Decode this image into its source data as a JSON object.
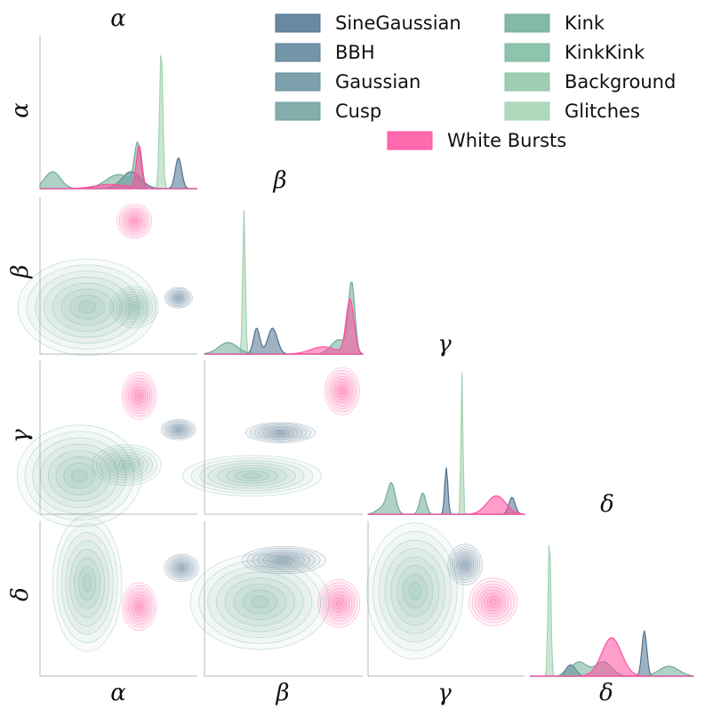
{
  "chart_data": {
    "type": "pairplot",
    "variables": [
      "α",
      "β",
      "γ",
      "δ"
    ],
    "diagonal_titles": [
      "α",
      "β",
      "γ",
      "δ"
    ],
    "row_labels": [
      "α",
      "β",
      "γ",
      "δ"
    ],
    "col_labels": [
      "α",
      "β",
      "γ",
      "δ"
    ],
    "legend_placement": "top-right",
    "legend": [
      {
        "name": "SineGaussian",
        "color": "#4f7390"
      },
      {
        "name": "BBH",
        "color": "#5a8299"
      },
      {
        "name": "Gaussian",
        "color": "#65919f"
      },
      {
        "name": "Cusp",
        "color": "#6e9f9c"
      },
      {
        "name": "Kink",
        "color": "#6fac98"
      },
      {
        "name": "KinkKink",
        "color": "#7ab99e"
      },
      {
        "name": "Background",
        "color": "#8dc5a4"
      },
      {
        "name": "Glitches",
        "color": "#a2d2b0"
      },
      {
        "name": "White Bursts",
        "color": "#ff4fa0"
      }
    ],
    "diagonal_kde": [
      {
        "variable": "α",
        "series": [
          {
            "name": "Glitches",
            "peaks": [
              [
                0.77,
                1.0,
                0.01
              ]
            ]
          },
          {
            "name": "SineGaussian",
            "peaks": [
              [
                0.88,
                0.22,
                0.02
              ],
              [
                0.58,
                0.12,
                0.06
              ]
            ]
          },
          {
            "name": "Kink",
            "peaks": [
              [
                0.08,
                0.12,
                0.05
              ],
              [
                0.5,
                0.1,
                0.08
              ],
              [
                0.62,
                0.3,
                0.02
              ]
            ]
          },
          {
            "name": "White Bursts",
            "peaks": [
              [
                0.63,
                0.3,
                0.018
              ],
              [
                0.45,
                0.03,
                0.1
              ]
            ]
          }
        ]
      },
      {
        "variable": "β",
        "series": [
          {
            "name": "Glitches",
            "peaks": [
              [
                0.25,
                1.0,
                0.008
              ]
            ]
          },
          {
            "name": "SineGaussian",
            "peaks": [
              [
                0.33,
                0.18,
                0.02
              ],
              [
                0.43,
                0.18,
                0.03
              ]
            ]
          },
          {
            "name": "Kink",
            "peaks": [
              [
                0.15,
                0.08,
                0.06
              ],
              [
                0.93,
                0.48,
                0.02
              ],
              [
                0.85,
                0.1,
                0.05
              ]
            ]
          },
          {
            "name": "White Bursts",
            "peaks": [
              [
                0.92,
                0.38,
                0.025
              ],
              [
                0.75,
                0.05,
                0.08
              ]
            ]
          }
        ]
      },
      {
        "variable": "γ",
        "series": [
          {
            "name": "Glitches",
            "peaks": [
              [
                0.6,
                1.0,
                0.006
              ]
            ]
          },
          {
            "name": "SineGaussian",
            "peaks": [
              [
                0.5,
                0.33,
                0.01
              ],
              [
                0.92,
                0.12,
                0.02
              ]
            ]
          },
          {
            "name": "Kink",
            "peaks": [
              [
                0.15,
                0.2,
                0.025
              ],
              [
                0.35,
                0.15,
                0.02
              ],
              [
                0.1,
                0.05,
                0.04
              ]
            ]
          },
          {
            "name": "White Bursts",
            "peaks": [
              [
                0.82,
                0.13,
                0.06
              ]
            ]
          }
        ]
      },
      {
        "variable": "δ",
        "series": [
          {
            "name": "Glitches",
            "peaks": [
              [
                0.12,
                1.0,
                0.008
              ]
            ]
          },
          {
            "name": "SineGaussian",
            "peaks": [
              [
                0.7,
                0.32,
                0.015
              ],
              [
                0.25,
                0.08,
                0.03
              ]
            ]
          },
          {
            "name": "Kink",
            "peaks": [
              [
                0.3,
                0.1,
                0.05
              ],
              [
                0.45,
                0.1,
                0.05
              ],
              [
                0.85,
                0.07,
                0.06
              ]
            ]
          },
          {
            "name": "White Bursts",
            "peaks": [
              [
                0.5,
                0.27,
                0.06
              ]
            ]
          }
        ]
      }
    ],
    "contour_blobs": {
      "β-α": [
        {
          "name": "White Bursts",
          "cx": 0.6,
          "cy": 0.85,
          "sx": 0.05,
          "sy": 0.05
        },
        {
          "name": "SineGaussian",
          "cx": 0.88,
          "cy": 0.36,
          "sx": 0.04,
          "sy": 0.03
        },
        {
          "name": "Kink",
          "cx": 0.3,
          "cy": 0.3,
          "sx": 0.2,
          "sy": 0.14
        },
        {
          "name": "Kink",
          "cx": 0.6,
          "cy": 0.3,
          "sx": 0.07,
          "sy": 0.06
        }
      ],
      "γ-α": [
        {
          "name": "White Bursts",
          "cx": 0.63,
          "cy": 0.77,
          "sx": 0.05,
          "sy": 0.07
        },
        {
          "name": "SineGaussian",
          "cx": 0.88,
          "cy": 0.55,
          "sx": 0.05,
          "sy": 0.03
        },
        {
          "name": "Kink",
          "cx": 0.25,
          "cy": 0.25,
          "sx": 0.18,
          "sy": 0.15
        },
        {
          "name": "Kink",
          "cx": 0.55,
          "cy": 0.32,
          "sx": 0.1,
          "sy": 0.06
        }
      ],
      "γ-β": [
        {
          "name": "White Bursts",
          "cx": 0.87,
          "cy": 0.8,
          "sx": 0.05,
          "sy": 0.07
        },
        {
          "name": "SineGaussian",
          "cx": 0.48,
          "cy": 0.53,
          "sx": 0.1,
          "sy": 0.03
        },
        {
          "name": "Kink",
          "cx": 0.3,
          "cy": 0.25,
          "sx": 0.2,
          "sy": 0.06
        }
      ],
      "δ-α": [
        {
          "name": "White Bursts",
          "cx": 0.63,
          "cy": 0.45,
          "sx": 0.05,
          "sy": 0.07
        },
        {
          "name": "SineGaussian",
          "cx": 0.9,
          "cy": 0.7,
          "sx": 0.05,
          "sy": 0.04
        },
        {
          "name": "Kink",
          "cx": 0.3,
          "cy": 0.6,
          "sx": 0.1,
          "sy": 0.2
        }
      ],
      "δ-β": [
        {
          "name": "White Bursts",
          "cx": 0.85,
          "cy": 0.47,
          "sx": 0.06,
          "sy": 0.07
        },
        {
          "name": "SineGaussian",
          "cx": 0.5,
          "cy": 0.75,
          "sx": 0.12,
          "sy": 0.04
        },
        {
          "name": "Kink",
          "cx": 0.35,
          "cy": 0.48,
          "sx": 0.2,
          "sy": 0.14
        }
      ],
      "δ-γ": [
        {
          "name": "White Bursts",
          "cx": 0.8,
          "cy": 0.48,
          "sx": 0.07,
          "sy": 0.07
        },
        {
          "name": "SineGaussian",
          "cx": 0.62,
          "cy": 0.72,
          "sx": 0.05,
          "sy": 0.06
        },
        {
          "name": "Kink",
          "cx": 0.3,
          "cy": 0.55,
          "sx": 0.14,
          "sy": 0.2
        }
      ]
    }
  }
}
